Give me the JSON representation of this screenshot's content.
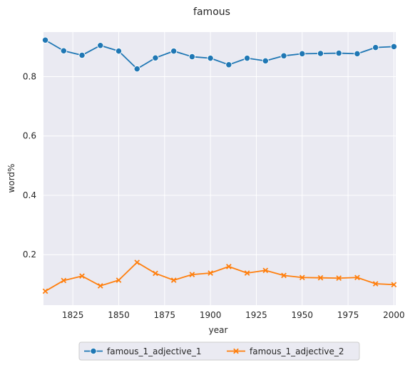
{
  "chart_data": {
    "type": "line",
    "title": "famous",
    "xlabel": "year",
    "ylabel": "word%",
    "xlim": [
      1809,
      2001
    ],
    "ylim": [
      0.03,
      0.95
    ],
    "xticks": [
      1825,
      1850,
      1875,
      1900,
      1925,
      1950,
      1975,
      2000
    ],
    "yticks": [
      0.2,
      0.4,
      0.6,
      0.8
    ],
    "grid": true,
    "legend_placement": "bottom-center",
    "x": [
      1810,
      1820,
      1830,
      1840,
      1850,
      1860,
      1870,
      1880,
      1890,
      1900,
      1910,
      1920,
      1930,
      1940,
      1950,
      1960,
      1970,
      1980,
      1990,
      2000
    ],
    "series": [
      {
        "name": "famous_1_adjective_1",
        "color": "#1f77b4",
        "marker": "circle",
        "values": [
          0.923,
          0.887,
          0.872,
          0.905,
          0.886,
          0.826,
          0.863,
          0.886,
          0.867,
          0.862,
          0.84,
          0.862,
          0.853,
          0.87,
          0.877,
          0.878,
          0.879,
          0.877,
          0.898,
          0.901
        ]
      },
      {
        "name": "famous_1_adjective_2",
        "color": "#ff7f0e",
        "marker": "x",
        "values": [
          0.077,
          0.113,
          0.128,
          0.095,
          0.114,
          0.174,
          0.137,
          0.114,
          0.133,
          0.138,
          0.16,
          0.138,
          0.147,
          0.13,
          0.123,
          0.122,
          0.121,
          0.123,
          0.102,
          0.099
        ]
      }
    ]
  },
  "colors": {
    "plot_background": "#eaeaf2",
    "grid": "#ffffff",
    "text": "#262626"
  }
}
